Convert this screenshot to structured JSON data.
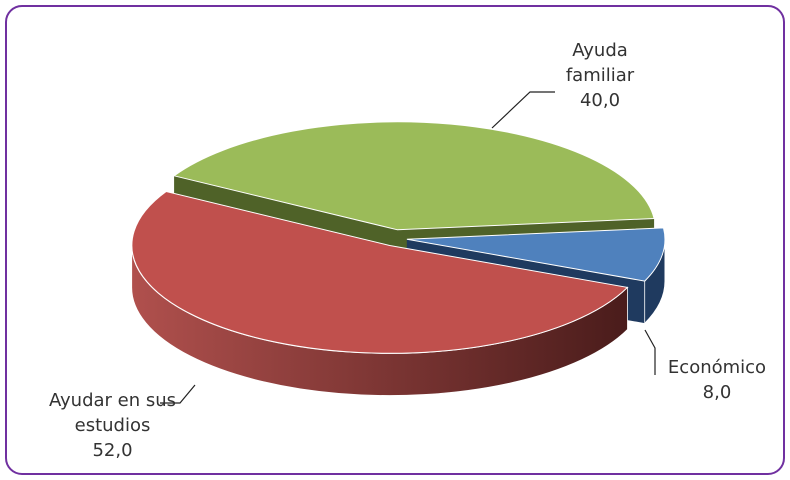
{
  "chart_data": {
    "type": "pie3d",
    "categories": [
      "Ayuda familiar",
      "Económico",
      "Ayudar en sus estudios"
    ],
    "values": [
      40,
      8,
      52
    ],
    "value_labels": [
      "40,0",
      "8,0",
      "52,0"
    ],
    "colors": [
      "#9bbb59",
      "#4f81bd",
      "#c0504d"
    ],
    "side_colors": [
      "#4f6228",
      "#1f3a5f",
      "#7a2e2c"
    ]
  }
}
